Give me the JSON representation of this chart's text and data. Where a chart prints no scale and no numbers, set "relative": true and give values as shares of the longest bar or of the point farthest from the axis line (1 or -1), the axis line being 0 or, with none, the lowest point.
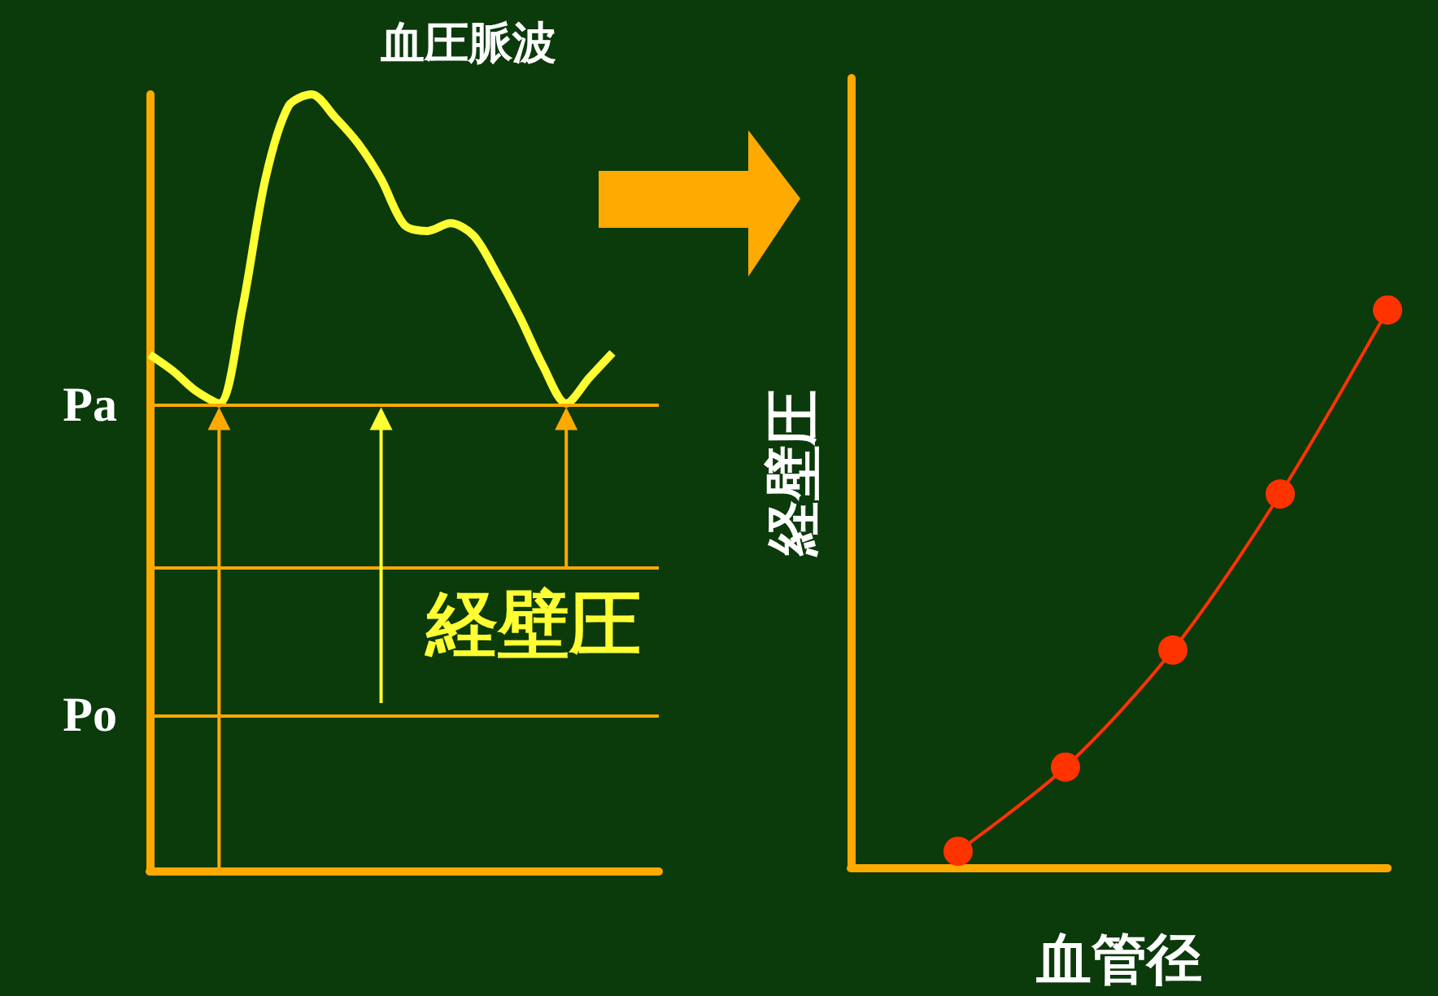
{
  "chart_data": [
    {
      "type": "line",
      "title": "血圧脈波",
      "relative": true,
      "marker": "none",
      "grid": false,
      "categories": [
        null,
        null,
        null,
        null,
        null,
        null,
        null,
        null,
        null,
        null,
        null,
        null,
        null,
        null,
        null,
        null,
        null,
        null,
        null,
        null,
        null,
        null,
        null
      ],
      "series": [
        {
          "color": "#ffff33",
          "values": [
            0.665,
            0.644,
            0.618,
            0.602,
            0.723,
            0.891,
            0.985,
            1.0,
            0.971,
            0.937,
            0.891,
            0.832,
            0.824,
            0.834,
            0.818,
            0.769,
            0.713,
            0.65,
            0.602,
            0.635,
            0.667,
            null,
            null
          ]
        }
      ],
      "ref_lines": [
        {
          "axis": "y",
          "value": 0.597,
          "label": "Pa",
          "color": "#ffaa00"
        },
        {
          "axis": "y",
          "value": 0.39,
          "label": null,
          "color": "#ffaa00"
        },
        {
          "axis": "y",
          "value": 0.2,
          "label": "Po",
          "color": "#ffaa00"
        }
      ],
      "annotations": [
        "経壁圧"
      ]
    },
    {
      "type": "line",
      "relative": true,
      "marker": "circle",
      "grid": false,
      "ylabel": "経壁圧",
      "xlabel": "血管径",
      "categories": [
        null,
        null,
        null,
        null,
        null,
        null
      ],
      "series": [
        {
          "color": "#ff3300",
          "values": [
            null,
            0.029,
            0.18,
            0.39,
            0.67,
            1.0
          ]
        }
      ]
    }
  ]
}
